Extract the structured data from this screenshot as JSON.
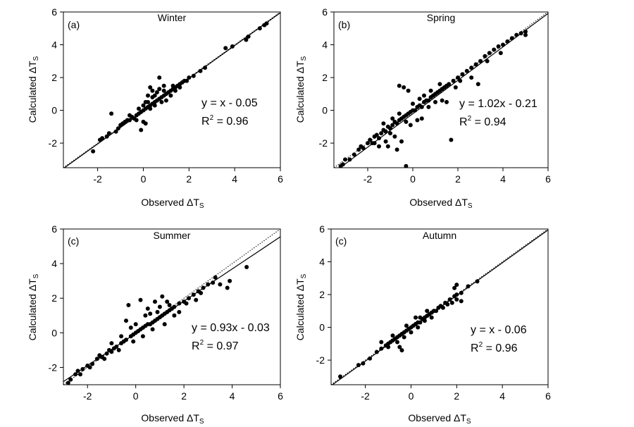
{
  "chart_data": [
    {
      "type": "scatter",
      "panel": "(a)",
      "title": "Winter",
      "xlabel": "Observed ΔT",
      "ylabel": "Calculated ΔT",
      "label_subscript": "S",
      "xlim": [
        -3.5,
        6
      ],
      "ylim": [
        -3.5,
        6
      ],
      "xticks": [
        "-2",
        "0",
        "2",
        "4",
        "6"
      ],
      "yticks": [
        "-2",
        "0",
        "2",
        "4",
        "6"
      ],
      "equation": "y = x - 0.05",
      "r2_label": "R",
      "r2_power": "2",
      "r2_value": " = 0.96",
      "fit": {
        "slope": 1.0,
        "intercept": -0.05
      },
      "points": [
        [
          -2.2,
          -2.5
        ],
        [
          -1.9,
          -1.8
        ],
        [
          -1.8,
          -1.7
        ],
        [
          -1.6,
          -1.6
        ],
        [
          -1.5,
          -1.4
        ],
        [
          -1.2,
          -1.3
        ],
        [
          -1.1,
          -1.1
        ],
        [
          -1.0,
          -0.9
        ],
        [
          -0.9,
          -0.8
        ],
        [
          -0.8,
          -0.7
        ],
        [
          -0.7,
          -0.6
        ],
        [
          -0.6,
          -0.6
        ],
        [
          -0.5,
          -0.4
        ],
        [
          -0.4,
          -0.5
        ],
        [
          -0.3,
          -0.3
        ],
        [
          -0.2,
          -0.2
        ],
        [
          -0.1,
          -0.1
        ],
        [
          0.0,
          0.0
        ],
        [
          0.1,
          0.1
        ],
        [
          0.2,
          0.2
        ],
        [
          0.3,
          0.3
        ],
        [
          0.4,
          0.4
        ],
        [
          0.5,
          0.5
        ],
        [
          0.6,
          0.6
        ],
        [
          0.7,
          0.7
        ],
        [
          0.8,
          0.8
        ],
        [
          0.9,
          0.9
        ],
        [
          1.0,
          1.0
        ],
        [
          1.1,
          1.1
        ],
        [
          1.2,
          1.2
        ],
        [
          1.3,
          1.3
        ],
        [
          1.4,
          1.4
        ],
        [
          1.5,
          1.5
        ],
        [
          1.6,
          1.6
        ],
        [
          1.7,
          1.7
        ],
        [
          1.8,
          1.8
        ],
        [
          2.0,
          2.0
        ],
        [
          2.2,
          2.1
        ],
        [
          2.5,
          2.4
        ],
        [
          2.7,
          2.6
        ],
        [
          3.6,
          3.8
        ],
        [
          3.9,
          3.9
        ],
        [
          4.5,
          4.3
        ],
        [
          4.6,
          4.5
        ],
        [
          5.1,
          5.0
        ],
        [
          5.3,
          5.2
        ],
        [
          5.4,
          5.3
        ],
        [
          0.7,
          2.0
        ],
        [
          0.3,
          1.4
        ],
        [
          -1.4,
          -0.2
        ],
        [
          0.0,
          -0.7
        ],
        [
          0.1,
          -0.8
        ],
        [
          -0.1,
          -1.2
        ],
        [
          0.4,
          1.2
        ],
        [
          0.2,
          0.9
        ],
        [
          0.9,
          1.5
        ],
        [
          0.6,
          1.1
        ],
        [
          1.0,
          0.6
        ],
        [
          0.5,
          0.3
        ],
        [
          0.3,
          0.1
        ],
        [
          0.8,
          0.5
        ],
        [
          1.2,
          0.9
        ],
        [
          1.4,
          1.2
        ],
        [
          0.2,
          0.5
        ],
        [
          -0.3,
          -0.6
        ],
        [
          -0.6,
          -0.3
        ],
        [
          0.0,
          0.3
        ],
        [
          1.6,
          1.4
        ],
        [
          1.9,
          1.8
        ],
        [
          0.9,
          1.2
        ],
        [
          0.4,
          0.8
        ],
        [
          0.1,
          0.5
        ],
        [
          -0.2,
          0.1
        ],
        [
          1.3,
          1.5
        ],
        [
          0.7,
          1.3
        ],
        [
          0.5,
          0.9
        ]
      ]
    },
    {
      "type": "scatter",
      "panel": "(b)",
      "title": "Spring",
      "xlabel": "Observed ΔT",
      "ylabel": "Calculated ΔT",
      "label_subscript": "S",
      "xlim": [
        -3.5,
        6
      ],
      "ylim": [
        -3.5,
        6
      ],
      "xticks": [
        "-2",
        "0",
        "2",
        "4",
        "6"
      ],
      "yticks": [
        "-2",
        "0",
        "2",
        "4",
        "6"
      ],
      "equation": "y = 1.02x - 0.21",
      "r2_label": "R",
      "r2_power": "2",
      "r2_value": " = 0.94",
      "fit": {
        "slope": 1.02,
        "intercept": -0.21
      },
      "points": [
        [
          -3.2,
          -3.4
        ],
        [
          -3.1,
          -3.3
        ],
        [
          -3.0,
          -3.0
        ],
        [
          -2.8,
          -3.0
        ],
        [
          -2.6,
          -2.7
        ],
        [
          -2.4,
          -2.4
        ],
        [
          -2.3,
          -2.2
        ],
        [
          -2.2,
          -2.3
        ],
        [
          -2.0,
          -2.0
        ],
        [
          -1.9,
          -1.8
        ],
        [
          -1.8,
          -2.0
        ],
        [
          -1.7,
          -1.6
        ],
        [
          -1.6,
          -1.5
        ],
        [
          -1.5,
          -1.7
        ],
        [
          -1.4,
          -1.4
        ],
        [
          -1.3,
          -1.2
        ],
        [
          -1.2,
          -1.3
        ],
        [
          -1.1,
          -1.0
        ],
        [
          -1.0,
          -1.1
        ],
        [
          -0.9,
          -0.9
        ],
        [
          -0.8,
          -0.7
        ],
        [
          -0.7,
          -0.8
        ],
        [
          -0.6,
          -0.6
        ],
        [
          -0.5,
          -0.5
        ],
        [
          -0.4,
          -0.4
        ],
        [
          -0.3,
          -0.3
        ],
        [
          -0.2,
          -0.2
        ],
        [
          -0.1,
          -0.1
        ],
        [
          0.0,
          0.0
        ],
        [
          0.1,
          0.0
        ],
        [
          0.2,
          0.2
        ],
        [
          0.3,
          0.3
        ],
        [
          0.4,
          0.2
        ],
        [
          0.5,
          0.5
        ],
        [
          0.6,
          0.6
        ],
        [
          0.7,
          0.6
        ],
        [
          0.8,
          0.8
        ],
        [
          0.9,
          0.9
        ],
        [
          1.0,
          1.0
        ],
        [
          1.1,
          1.1
        ],
        [
          1.2,
          1.2
        ],
        [
          1.3,
          1.3
        ],
        [
          1.4,
          1.4
        ],
        [
          1.5,
          1.5
        ],
        [
          1.6,
          1.6
        ],
        [
          1.8,
          1.8
        ],
        [
          2.0,
          2.0
        ],
        [
          2.2,
          2.2
        ],
        [
          2.4,
          2.4
        ],
        [
          2.6,
          2.6
        ],
        [
          2.8,
          2.8
        ],
        [
          3.0,
          3.0
        ],
        [
          3.2,
          3.3
        ],
        [
          3.4,
          3.5
        ],
        [
          3.6,
          3.7
        ],
        [
          3.8,
          3.9
        ],
        [
          4.0,
          4.0
        ],
        [
          4.2,
          4.2
        ],
        [
          4.4,
          4.4
        ],
        [
          4.6,
          4.6
        ],
        [
          4.8,
          4.7
        ],
        [
          5.0,
          4.8
        ],
        [
          5.0,
          4.6
        ],
        [
          -0.6,
          1.5
        ],
        [
          -0.4,
          1.4
        ],
        [
          -0.2,
          1.2
        ],
        [
          -0.5,
          -1.9
        ],
        [
          -0.7,
          -2.4
        ],
        [
          -1.1,
          -2.2
        ],
        [
          -0.3,
          -3.4
        ],
        [
          1.5,
          0.5
        ],
        [
          1.7,
          -1.8
        ],
        [
          1.3,
          0.6
        ],
        [
          1.0,
          0.5
        ],
        [
          0.7,
          0.2
        ],
        [
          0.4,
          -0.5
        ],
        [
          0.2,
          -0.6
        ],
        [
          -0.1,
          -0.9
        ],
        [
          -0.8,
          -1.6
        ],
        [
          -1.2,
          -1.9
        ],
        [
          -1.5,
          -2.2
        ],
        [
          2.9,
          1.6
        ],
        [
          2.6,
          2.0
        ],
        [
          3.3,
          3.0
        ],
        [
          3.9,
          3.5
        ],
        [
          0.8,
          1.2
        ],
        [
          1.2,
          1.6
        ],
        [
          0.0,
          0.4
        ],
        [
          -0.6,
          -0.2
        ],
        [
          -0.9,
          -0.5
        ],
        [
          -1.3,
          -0.8
        ],
        [
          2.1,
          1.8
        ],
        [
          1.9,
          1.4
        ],
        [
          0.5,
          0.9
        ],
        [
          0.3,
          0.7
        ],
        [
          -0.3,
          -0.7
        ],
        [
          -1.0,
          -1.4
        ],
        [
          -1.7,
          -2.0
        ]
      ]
    },
    {
      "type": "scatter",
      "panel": "(c)",
      "title": "Summer",
      "xlabel": "Observed ΔT",
      "ylabel": "Calculated ΔT",
      "label_subscript": "S",
      "xlim": [
        -3,
        6
      ],
      "ylim": [
        -3,
        6
      ],
      "xticks": [
        "-2",
        "0",
        "2",
        "4",
        "6"
      ],
      "yticks": [
        "-2",
        "0",
        "2",
        "4",
        "6"
      ],
      "equation": "y = 0.93x - 0.03",
      "r2_label": "R",
      "r2_power": "2",
      "r2_value": " = 0.97",
      "fit": {
        "slope": 0.93,
        "intercept": -0.03
      },
      "points": [
        [
          -2.8,
          -2.9
        ],
        [
          -2.7,
          -2.7
        ],
        [
          -2.5,
          -2.4
        ],
        [
          -2.4,
          -2.2
        ],
        [
          -2.2,
          -2.1
        ],
        [
          -2.0,
          -1.9
        ],
        [
          -1.8,
          -1.8
        ],
        [
          -1.6,
          -1.5
        ],
        [
          -1.5,
          -1.3
        ],
        [
          -1.4,
          -1.4
        ],
        [
          -1.2,
          -1.2
        ],
        [
          -1.1,
          -1.0
        ],
        [
          -1.0,
          -1.1
        ],
        [
          -0.9,
          -0.9
        ],
        [
          -0.8,
          -0.8
        ],
        [
          -0.6,
          -0.6
        ],
        [
          -0.5,
          -0.5
        ],
        [
          -0.4,
          -0.4
        ],
        [
          -0.2,
          -0.2
        ],
        [
          -0.1,
          -0.1
        ],
        [
          0.0,
          0.0
        ],
        [
          0.1,
          0.1
        ],
        [
          0.2,
          0.2
        ],
        [
          0.3,
          0.3
        ],
        [
          0.4,
          0.4
        ],
        [
          0.5,
          0.5
        ],
        [
          0.6,
          0.5
        ],
        [
          0.7,
          0.6
        ],
        [
          0.8,
          0.7
        ],
        [
          0.9,
          0.8
        ],
        [
          1.0,
          0.9
        ],
        [
          1.1,
          1.0
        ],
        [
          1.2,
          1.1
        ],
        [
          1.3,
          1.2
        ],
        [
          1.4,
          1.3
        ],
        [
          1.5,
          1.4
        ],
        [
          1.6,
          1.5
        ],
        [
          1.8,
          1.7
        ],
        [
          2.0,
          1.8
        ],
        [
          2.2,
          2.0
        ],
        [
          2.4,
          2.2
        ],
        [
          2.6,
          2.4
        ],
        [
          2.8,
          2.6
        ],
        [
          3.0,
          2.8
        ],
        [
          3.2,
          2.9
        ],
        [
          3.5,
          2.8
        ],
        [
          3.9,
          3.0
        ],
        [
          3.8,
          2.6
        ],
        [
          4.6,
          3.8
        ],
        [
          -0.3,
          1.6
        ],
        [
          -0.4,
          0.7
        ],
        [
          0.2,
          1.9
        ],
        [
          0.5,
          1.4
        ],
        [
          1.0,
          1.5
        ],
        [
          1.4,
          1.6
        ],
        [
          0.9,
          1.2
        ],
        [
          0.4,
          1.0
        ],
        [
          0.0,
          0.5
        ],
        [
          -0.2,
          0.3
        ],
        [
          -0.6,
          -0.2
        ],
        [
          -1.0,
          -0.6
        ],
        [
          1.2,
          0.5
        ],
        [
          1.6,
          1.0
        ],
        [
          2.1,
          1.7
        ],
        [
          2.5,
          1.9
        ],
        [
          0.7,
          0.2
        ],
        [
          0.3,
          -0.2
        ],
        [
          -0.1,
          -0.5
        ],
        [
          -0.7,
          -1.0
        ],
        [
          -1.3,
          -1.5
        ],
        [
          -1.9,
          -2.0
        ],
        [
          -2.3,
          -2.4
        ],
        [
          1.1,
          2.1
        ],
        [
          0.8,
          1.8
        ],
        [
          1.8,
          1.2
        ],
        [
          2.7,
          2.3
        ],
        [
          3.3,
          3.2
        ],
        [
          0.6,
          1.1
        ],
        [
          1.3,
          1.8
        ]
      ]
    },
    {
      "type": "scatter",
      "panel": "(c)",
      "title": "Autumn",
      "xlabel": "Observed ΔT",
      "ylabel": "Calculated ΔT",
      "label_subscript": "S",
      "xlim": [
        -3.5,
        6
      ],
      "ylim": [
        -3.5,
        6
      ],
      "xticks": [
        "-2",
        "0",
        "2",
        "4",
        "6"
      ],
      "yticks": [
        "-2",
        "0",
        "2",
        "4",
        "6"
      ],
      "equation": "y = x - 0.06",
      "r2_label": "R",
      "r2_power": "2",
      "r2_value": " = 0.96",
      "fit": {
        "slope": 1.0,
        "intercept": -0.06
      },
      "points": [
        [
          -3.1,
          -3.0
        ],
        [
          -2.3,
          -2.3
        ],
        [
          -2.1,
          -2.2
        ],
        [
          -1.8,
          -1.9
        ],
        [
          -1.5,
          -1.5
        ],
        [
          -1.3,
          -1.3
        ],
        [
          -1.1,
          -1.1
        ],
        [
          -1.0,
          -1.0
        ],
        [
          -0.9,
          -0.9
        ],
        [
          -0.8,
          -0.8
        ],
        [
          -0.7,
          -0.7
        ],
        [
          -0.6,
          -0.6
        ],
        [
          -0.5,
          -0.5
        ],
        [
          -0.4,
          -0.4
        ],
        [
          -0.3,
          -0.3
        ],
        [
          -0.2,
          -0.2
        ],
        [
          -0.1,
          -0.1
        ],
        [
          0.0,
          0.0
        ],
        [
          0.1,
          0.1
        ],
        [
          0.2,
          0.2
        ],
        [
          0.3,
          0.3
        ],
        [
          0.4,
          0.3
        ],
        [
          0.5,
          0.5
        ],
        [
          0.6,
          0.6
        ],
        [
          0.7,
          0.7
        ],
        [
          0.8,
          0.8
        ],
        [
          0.9,
          0.9
        ],
        [
          1.0,
          1.0
        ],
        [
          1.1,
          1.0
        ],
        [
          1.2,
          1.2
        ],
        [
          1.3,
          1.3
        ],
        [
          1.5,
          1.5
        ],
        [
          1.7,
          1.7
        ],
        [
          1.9,
          1.9
        ],
        [
          2.0,
          2.0
        ],
        [
          2.2,
          2.1
        ],
        [
          2.5,
          2.5
        ],
        [
          2.9,
          2.8
        ],
        [
          2.0,
          2.6
        ],
        [
          1.9,
          2.4
        ],
        [
          1.8,
          1.5
        ],
        [
          2.0,
          1.7
        ],
        [
          2.2,
          1.6
        ],
        [
          -0.5,
          -1.2
        ],
        [
          -0.4,
          -1.4
        ],
        [
          -1.3,
          -0.9
        ],
        [
          -0.8,
          -0.5
        ],
        [
          0.2,
          0.6
        ],
        [
          0.7,
          1.0
        ],
        [
          1.4,
          1.2
        ],
        [
          0.0,
          -0.3
        ],
        [
          -0.3,
          -0.6
        ],
        [
          0.4,
          0.6
        ],
        [
          0.9,
          0.6
        ],
        [
          -0.6,
          -0.9
        ],
        [
          -1.0,
          -1.2
        ],
        [
          1.6,
          1.4
        ],
        [
          0.6,
          0.4
        ],
        [
          0.3,
          0.0
        ],
        [
          -0.2,
          0.1
        ]
      ]
    }
  ]
}
